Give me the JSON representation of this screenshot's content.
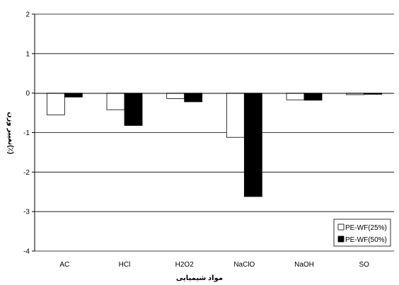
{
  "chart_data": {
    "type": "bar",
    "categories": [
      "AC",
      "HCl",
      "H2O2",
      "NaClO",
      "NaOH",
      "SO"
    ],
    "series": [
      {
        "name": "PE-WF(25%)",
        "values": [
          -0.55,
          -0.42,
          -0.14,
          -1.12,
          -0.17,
          -0.04
        ],
        "fill": "#ffffff"
      },
      {
        "name": "PE-WF(50%)",
        "values": [
          -0.1,
          -0.82,
          -0.22,
          -2.62,
          -0.18,
          -0.03
        ],
        "fill": "#000000"
      }
    ],
    "xlabel": "مواد شیمیایی",
    "ylabel": "تغییر وزن(٪)",
    "ylim": [
      -4,
      2
    ],
    "yticks": [
      2,
      1,
      0,
      -1,
      -2,
      -3,
      -4
    ],
    "grid": true,
    "legend_position": "bottom-right"
  }
}
